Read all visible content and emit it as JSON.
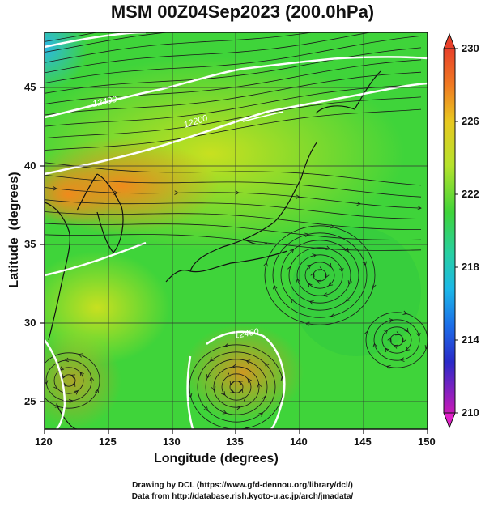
{
  "title": "MSM 00Z04Sep2023 (200.0hPa)",
  "axes": {
    "xlabel": "Longitude (degrees)",
    "ylabel": "Latitude  (degrees)",
    "xticks": [
      "120",
      "125",
      "130",
      "135",
      "140",
      "145",
      "150"
    ],
    "yticks": [
      "45",
      "40",
      "35",
      "30",
      "25"
    ]
  },
  "colorbar": {
    "ticks": [
      "230",
      "226",
      "222",
      "218",
      "214",
      "210"
    ]
  },
  "credits": {
    "line1": "Drawing by DCL (https://www.gfd-dennou.org/library/dcl/)",
    "line2": "Data from http://database.rish.kyoto-u.ac.jp/arch/jmadata/"
  },
  "contour_labels": [
    "12400",
    "12200",
    "12400"
  ],
  "colors": {
    "green": "#3fd43a",
    "yellow_green": "#a8e020",
    "orange": "#f08a1c"
  }
}
